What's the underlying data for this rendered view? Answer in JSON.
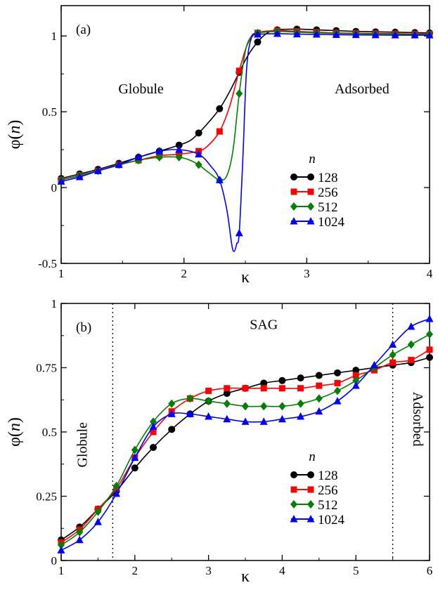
{
  "chart_data": [
    {
      "type": "line",
      "panel_label": "(a)",
      "xlabel": "κ",
      "ylabel": "φ(n)",
      "xlim": [
        1,
        4
      ],
      "ylim": [
        -0.5,
        1.2
      ],
      "x_ticks": [
        1,
        2,
        3,
        4
      ],
      "x_tick_labels": [
        "1",
        "2",
        "3",
        "4"
      ],
      "y_ticks": [
        -0.5,
        0,
        0.5,
        1
      ],
      "y_tick_labels": [
        "-0.5",
        "0",
        "0.5",
        "1"
      ],
      "grid": false,
      "legend": {
        "title": "n",
        "position": "lower-right"
      },
      "annotations": [
        {
          "text": "Globule",
          "x": 1.65,
          "y": 0.62
        },
        {
          "text": "Adsorbed",
          "x": 3.45,
          "y": 0.62
        }
      ],
      "series": [
        {
          "name": "128",
          "color": "#000000",
          "marker": "circle",
          "x": [
            1.0,
            1.15,
            1.3,
            1.47,
            1.63,
            1.8,
            1.96,
            2.12,
            2.29,
            2.45,
            2.6,
            2.76,
            2.92,
            3.08,
            3.24,
            3.4,
            3.56,
            3.72,
            3.88,
            4.0
          ],
          "y": [
            0.06,
            0.09,
            0.12,
            0.16,
            0.2,
            0.24,
            0.28,
            0.36,
            0.52,
            0.76,
            0.96,
            1.04,
            1.045,
            1.04,
            1.035,
            1.03,
            1.027,
            1.025,
            1.022,
            1.02
          ],
          "curve": [
            [
              1.0,
              0.06
            ],
            [
              1.15,
              0.09
            ],
            [
              1.3,
              0.12
            ],
            [
              1.47,
              0.16
            ],
            [
              1.63,
              0.2
            ],
            [
              1.8,
              0.24
            ],
            [
              1.96,
              0.28
            ],
            [
              2.05,
              0.31
            ],
            [
              2.12,
              0.36
            ],
            [
              2.2,
              0.43
            ],
            [
              2.29,
              0.52
            ],
            [
              2.37,
              0.63
            ],
            [
              2.45,
              0.76
            ],
            [
              2.52,
              0.87
            ],
            [
              2.6,
              0.96
            ],
            [
              2.68,
              1.02
            ],
            [
              2.76,
              1.04
            ],
            [
              2.92,
              1.045
            ],
            [
              3.08,
              1.04
            ],
            [
              3.24,
              1.035
            ],
            [
              3.4,
              1.03
            ],
            [
              3.56,
              1.027
            ],
            [
              3.72,
              1.025
            ],
            [
              3.88,
              1.022
            ],
            [
              4.0,
              1.02
            ]
          ]
        },
        {
          "name": "256",
          "color": "#ff0000",
          "marker": "square",
          "x": [
            1.0,
            1.15,
            1.3,
            1.47,
            1.63,
            1.8,
            1.96,
            2.12,
            2.29,
            2.45,
            2.6,
            2.76,
            2.92,
            3.08,
            3.24,
            3.4,
            3.56,
            3.72,
            3.88,
            4.0
          ],
          "y": [
            0.05,
            0.08,
            0.11,
            0.15,
            0.18,
            0.21,
            0.22,
            0.24,
            0.37,
            0.77,
            1.02,
            1.035,
            1.03,
            1.025,
            1.02,
            1.018,
            1.016,
            1.015,
            1.013,
            1.012
          ],
          "curve": [
            [
              1.0,
              0.05
            ],
            [
              1.15,
              0.08
            ],
            [
              1.3,
              0.11
            ],
            [
              1.47,
              0.15
            ],
            [
              1.63,
              0.18
            ],
            [
              1.8,
              0.21
            ],
            [
              1.96,
              0.22
            ],
            [
              2.12,
              0.24
            ],
            [
              2.2,
              0.28
            ],
            [
              2.29,
              0.37
            ],
            [
              2.37,
              0.53
            ],
            [
              2.45,
              0.77
            ],
            [
              2.52,
              0.95
            ],
            [
              2.6,
              1.02
            ],
            [
              2.76,
              1.035
            ],
            [
              2.92,
              1.03
            ],
            [
              3.08,
              1.025
            ],
            [
              3.24,
              1.02
            ],
            [
              3.4,
              1.018
            ],
            [
              3.56,
              1.016
            ],
            [
              3.72,
              1.015
            ],
            [
              3.88,
              1.013
            ],
            [
              4.0,
              1.012
            ]
          ]
        },
        {
          "name": "512",
          "color": "#008000",
          "marker": "diamond",
          "x": [
            1.0,
            1.15,
            1.3,
            1.47,
            1.63,
            1.8,
            1.96,
            2.12,
            2.29,
            2.45,
            2.6,
            2.76,
            2.92,
            3.08,
            3.24,
            3.4,
            3.56,
            3.72,
            3.88,
            4.0
          ],
          "y": [
            0.05,
            0.08,
            0.11,
            0.15,
            0.18,
            0.2,
            0.2,
            0.15,
            0.05,
            0.62,
            1.02,
            1.03,
            1.025,
            1.02,
            1.017,
            1.015,
            1.013,
            1.012,
            1.01,
            1.01
          ],
          "curve": [
            [
              1.0,
              0.05
            ],
            [
              1.15,
              0.08
            ],
            [
              1.3,
              0.11
            ],
            [
              1.47,
              0.15
            ],
            [
              1.63,
              0.18
            ],
            [
              1.8,
              0.2
            ],
            [
              1.96,
              0.2
            ],
            [
              2.05,
              0.18
            ],
            [
              2.12,
              0.15
            ],
            [
              2.2,
              0.1
            ],
            [
              2.29,
              0.05
            ],
            [
              2.35,
              0.08
            ],
            [
              2.4,
              0.25
            ],
            [
              2.45,
              0.62
            ],
            [
              2.5,
              0.9
            ],
            [
              2.55,
              1.0
            ],
            [
              2.6,
              1.02
            ],
            [
              2.76,
              1.03
            ],
            [
              2.92,
              1.025
            ],
            [
              3.08,
              1.02
            ],
            [
              3.24,
              1.017
            ],
            [
              3.4,
              1.015
            ],
            [
              3.56,
              1.013
            ],
            [
              3.72,
              1.012
            ],
            [
              3.88,
              1.01
            ],
            [
              4.0,
              1.01
            ]
          ]
        },
        {
          "name": "1024",
          "color": "#0000ff",
          "marker": "triangle",
          "x": [
            1.0,
            1.15,
            1.3,
            1.47,
            1.63,
            1.8,
            1.96,
            2.12,
            2.29,
            2.45,
            2.6,
            2.76,
            2.92,
            3.08,
            3.24,
            3.4,
            3.56,
            3.72,
            3.88,
            4.0
          ],
          "y": [
            0.04,
            0.07,
            0.11,
            0.15,
            0.2,
            0.24,
            0.25,
            0.22,
            0.05,
            -0.3,
            1.01,
            1.015,
            1.012,
            1.01,
            1.008,
            1.007,
            1.006,
            1.005,
            1.005,
            1.005
          ],
          "curve": [
            [
              1.0,
              0.04
            ],
            [
              1.15,
              0.07
            ],
            [
              1.3,
              0.11
            ],
            [
              1.47,
              0.15
            ],
            [
              1.63,
              0.2
            ],
            [
              1.8,
              0.24
            ],
            [
              1.96,
              0.25
            ],
            [
              2.12,
              0.22
            ],
            [
              2.22,
              0.14
            ],
            [
              2.29,
              0.05
            ],
            [
              2.35,
              -0.15
            ],
            [
              2.39,
              -0.38
            ],
            [
              2.41,
              -0.42
            ],
            [
              2.43,
              -0.37
            ],
            [
              2.45,
              -0.3
            ],
            [
              2.48,
              0.2
            ],
            [
              2.51,
              0.78
            ],
            [
              2.55,
              0.99
            ],
            [
              2.6,
              1.01
            ],
            [
              2.76,
              1.015
            ],
            [
              2.92,
              1.012
            ],
            [
              3.08,
              1.01
            ],
            [
              3.24,
              1.008
            ],
            [
              3.4,
              1.007
            ],
            [
              3.56,
              1.006
            ],
            [
              3.72,
              1.005
            ],
            [
              3.88,
              1.005
            ],
            [
              4.0,
              1.005
            ]
          ]
        }
      ]
    },
    {
      "type": "line",
      "panel_label": "(b)",
      "xlabel": "κ",
      "ylabel": "φ(n)",
      "xlim": [
        1,
        6
      ],
      "ylim": [
        0,
        1
      ],
      "x_ticks": [
        1,
        2,
        3,
        4,
        5,
        6
      ],
      "x_tick_labels": [
        "1",
        "2",
        "3",
        "4",
        "5",
        "6"
      ],
      "y_ticks": [
        0,
        0.25,
        0.5,
        0.75,
        1
      ],
      "y_tick_labels": [
        "0",
        "0.25",
        "0.5",
        "0.75",
        "1"
      ],
      "grid": false,
      "legend": {
        "title": "n",
        "position": "lower-right"
      },
      "vlines": [
        1.7,
        5.5
      ],
      "annotations": [
        {
          "text": "SAG",
          "x": 3.75,
          "y": 0.9
        },
        {
          "text": "Globule",
          "x": 1.35,
          "y": 0.45,
          "rotate": -90
        },
        {
          "text": "Adsorbed",
          "x": 5.78,
          "y": 0.55,
          "rotate": 90
        }
      ],
      "series": [
        {
          "name": "128",
          "color": "#000000",
          "marker": "circle",
          "x": [
            1.0,
            1.25,
            1.5,
            1.75,
            2.0,
            2.25,
            2.5,
            2.75,
            3.0,
            3.25,
            3.5,
            3.75,
            4.0,
            4.25,
            4.5,
            4.75,
            5.0,
            5.25,
            5.5,
            5.75,
            6.0
          ],
          "y": [
            0.08,
            0.13,
            0.2,
            0.27,
            0.36,
            0.44,
            0.51,
            0.57,
            0.62,
            0.65,
            0.67,
            0.69,
            0.7,
            0.71,
            0.72,
            0.73,
            0.74,
            0.75,
            0.76,
            0.77,
            0.79
          ]
        },
        {
          "name": "256",
          "color": "#ff0000",
          "marker": "square",
          "x": [
            1.0,
            1.25,
            1.5,
            1.75,
            2.0,
            2.25,
            2.5,
            2.75,
            3.0,
            3.25,
            3.5,
            3.75,
            4.0,
            4.25,
            4.5,
            4.75,
            5.0,
            5.25,
            5.5,
            5.75,
            6.0
          ],
          "y": [
            0.07,
            0.12,
            0.2,
            0.28,
            0.4,
            0.5,
            0.58,
            0.63,
            0.66,
            0.67,
            0.67,
            0.67,
            0.67,
            0.67,
            0.68,
            0.69,
            0.72,
            0.74,
            0.77,
            0.78,
            0.82
          ]
        },
        {
          "name": "512",
          "color": "#008000",
          "marker": "diamond",
          "x": [
            1.0,
            1.25,
            1.5,
            1.75,
            2.0,
            2.25,
            2.5,
            2.75,
            3.0,
            3.25,
            3.5,
            3.75,
            4.0,
            4.25,
            4.5,
            4.75,
            5.0,
            5.25,
            5.5,
            5.75,
            6.0
          ],
          "y": [
            0.06,
            0.11,
            0.19,
            0.29,
            0.43,
            0.54,
            0.61,
            0.63,
            0.62,
            0.61,
            0.6,
            0.6,
            0.6,
            0.61,
            0.63,
            0.66,
            0.7,
            0.75,
            0.8,
            0.84,
            0.88
          ]
        },
        {
          "name": "1024",
          "color": "#0000ff",
          "marker": "triangle",
          "x": [
            1.0,
            1.25,
            1.5,
            1.75,
            2.0,
            2.25,
            2.5,
            2.75,
            3.0,
            3.25,
            3.5,
            3.75,
            4.0,
            4.25,
            4.5,
            4.75,
            5.0,
            5.25,
            5.5,
            5.75,
            6.0
          ],
          "y": [
            0.04,
            0.08,
            0.15,
            0.26,
            0.4,
            0.52,
            0.57,
            0.57,
            0.56,
            0.55,
            0.54,
            0.54,
            0.55,
            0.56,
            0.58,
            0.62,
            0.68,
            0.76,
            0.84,
            0.91,
            0.94
          ]
        }
      ]
    }
  ]
}
